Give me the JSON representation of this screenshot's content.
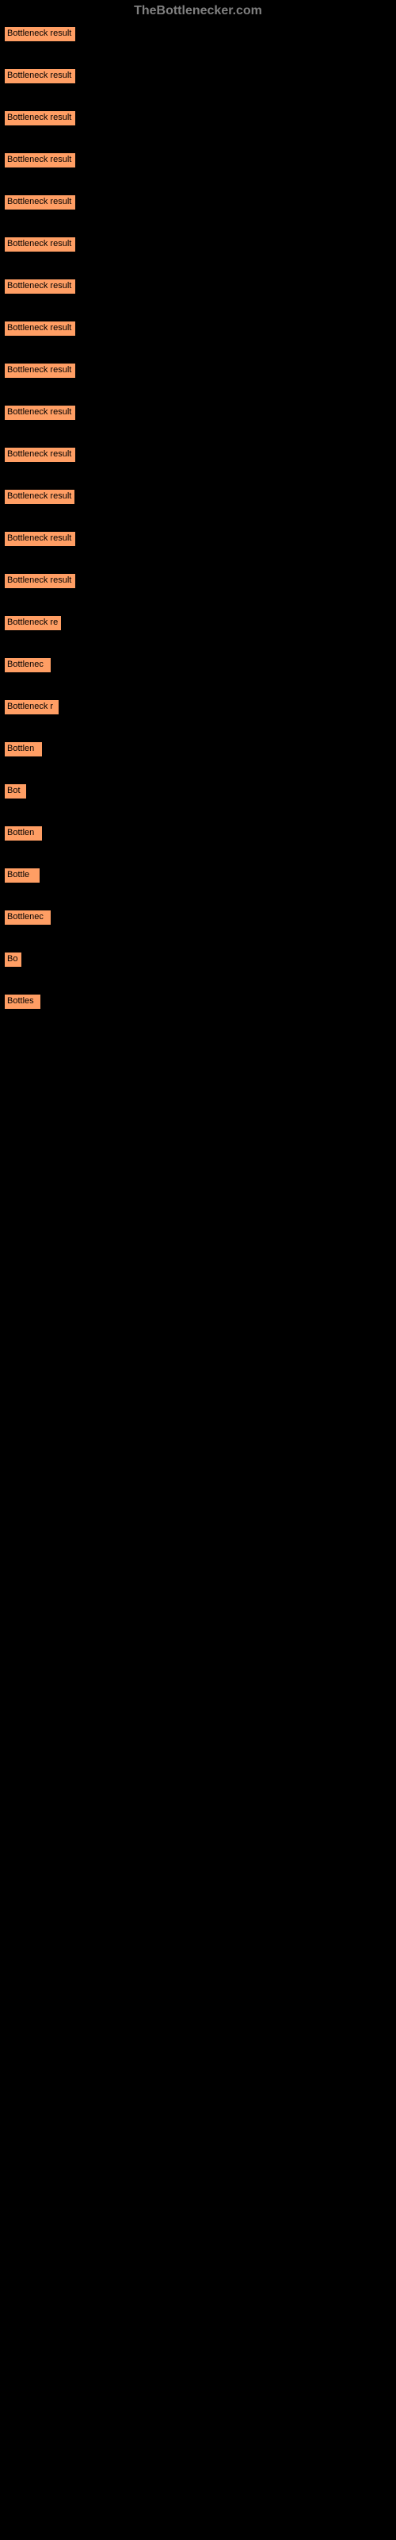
{
  "header": {
    "title": "TheBottlenecker.com"
  },
  "chart": {
    "type": "bar",
    "background_color": "#000000",
    "bar_color": "#ff9e64",
    "bar_border_color": "#000000",
    "text_color": "#000000",
    "label_fontsize": 11,
    "max_width": 91,
    "bars": [
      {
        "label": "Bottleneck result",
        "width": 91
      },
      {
        "label": "Bottleneck result",
        "width": 91
      },
      {
        "label": "Bottleneck result",
        "width": 91
      },
      {
        "label": "Bottleneck result",
        "width": 91
      },
      {
        "label": "Bottleneck result",
        "width": 91
      },
      {
        "label": "Bottleneck result",
        "width": 91
      },
      {
        "label": "Bottleneck result",
        "width": 91
      },
      {
        "label": "Bottleneck result",
        "width": 91
      },
      {
        "label": "Bottleneck result",
        "width": 91
      },
      {
        "label": "Bottleneck result",
        "width": 91
      },
      {
        "label": "Bottleneck result",
        "width": 91
      },
      {
        "label": "Bottleneck result",
        "width": 90
      },
      {
        "label": "Bottleneck result",
        "width": 91
      },
      {
        "label": "Bottleneck result",
        "width": 91
      },
      {
        "label": "Bottleneck re",
        "width": 73
      },
      {
        "label": "Bottlenec",
        "width": 60
      },
      {
        "label": "Bottleneck r",
        "width": 70
      },
      {
        "label": "Bottlen",
        "width": 49
      },
      {
        "label": "Bot",
        "width": 29
      },
      {
        "label": "Bottlen",
        "width": 49
      },
      {
        "label": "Bottle",
        "width": 46
      },
      {
        "label": "Bottlenec",
        "width": 60
      },
      {
        "label": "Bo",
        "width": 23
      },
      {
        "label": "Bottles",
        "width": 47
      }
    ]
  }
}
